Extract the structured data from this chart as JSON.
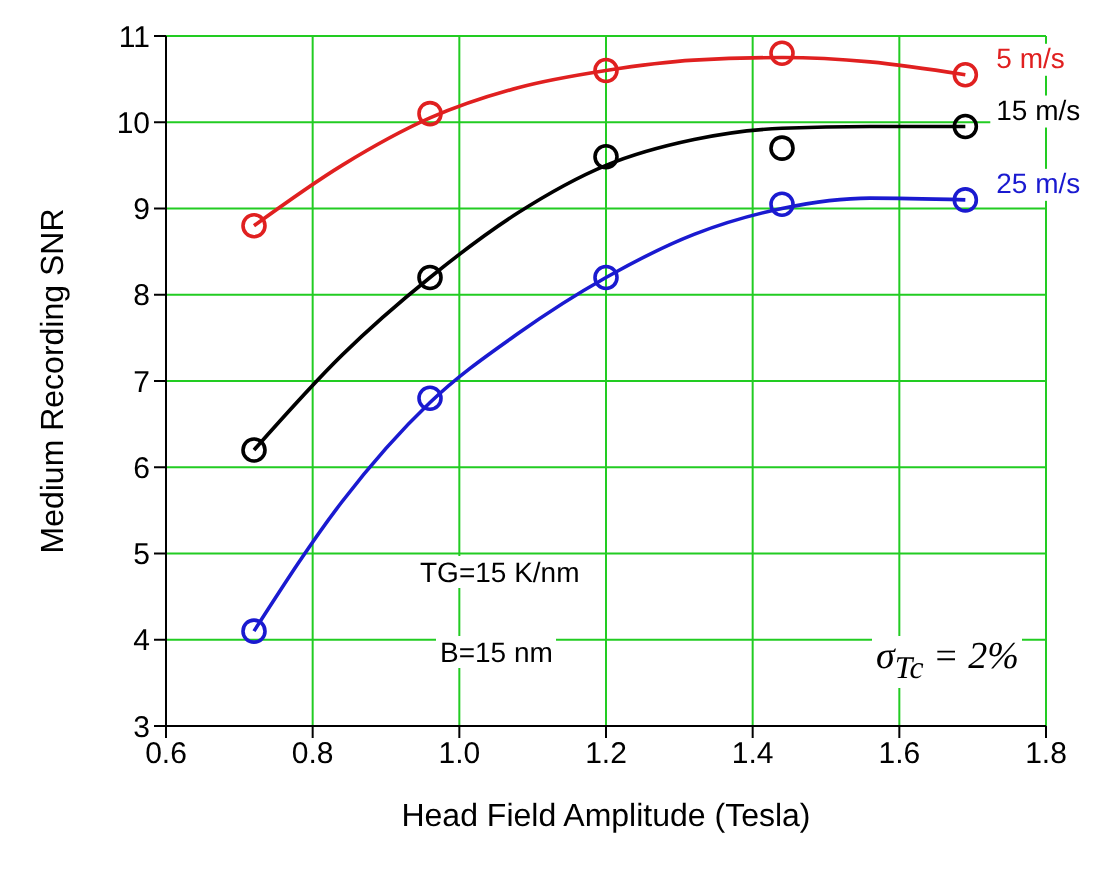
{
  "chart_data": {
    "type": "scatter",
    "xlabel": "Head Field Amplitude (Tesla)",
    "ylabel": "Medium Recording SNR",
    "xlim": [
      0.6,
      1.8
    ],
    "xticks": [
      0.6,
      0.8,
      {
        "value": 1,
        "label": "1.0"
      },
      1.2,
      1.4,
      1.6,
      1.8
    ],
    "ylim": [
      3,
      11
    ],
    "yticks": [
      3,
      4,
      5,
      6,
      7,
      8,
      9,
      10,
      11
    ],
    "grid": true,
    "legend": false,
    "marker": "circle",
    "series": [
      {
        "name": "5 m/s",
        "color": "#e02020",
        "x": [
          0.72,
          0.96,
          1.2,
          1.44,
          1.69
        ],
        "values": [
          8.8,
          10.1,
          10.6,
          10.8,
          10.55
        ]
      },
      {
        "name": "15 m/s",
        "color": "#000000",
        "x": [
          0.72,
          0.96,
          1.2,
          1.44,
          1.69
        ],
        "values": [
          6.2,
          8.2,
          9.6,
          9.7,
          9.95
        ]
      },
      {
        "name": "25 m/s",
        "color": "#1a1ad0",
        "x": [
          0.72,
          0.96,
          1.2,
          1.44,
          1.69
        ],
        "values": [
          4.1,
          6.8,
          8.2,
          9.05,
          9.1
        ]
      },
      {
        "type": "line",
        "color": "#e02020",
        "marker": "none",
        "x": [
          0.72,
          0.84,
          0.96,
          1.08,
          1.2,
          1.32,
          1.44,
          1.56,
          1.69
        ],
        "values": [
          8.8,
          9.5,
          10.05,
          10.4,
          10.6,
          10.72,
          10.75,
          10.7,
          10.55
        ]
      },
      {
        "type": "line",
        "color": "#000000",
        "marker": "none",
        "x": [
          0.72,
          0.84,
          0.96,
          1.08,
          1.2,
          1.32,
          1.44,
          1.56,
          1.69
        ],
        "values": [
          6.2,
          7.3,
          8.2,
          8.95,
          9.5,
          9.8,
          9.93,
          9.95,
          9.95
        ]
      },
      {
        "type": "line",
        "color": "#1a1ad0",
        "marker": "none",
        "x": [
          0.72,
          0.84,
          0.96,
          1.08,
          1.2,
          1.32,
          1.44,
          1.56,
          1.69
        ],
        "values": [
          4.1,
          5.6,
          6.75,
          7.55,
          8.2,
          8.7,
          9.0,
          9.12,
          9.1
        ]
      }
    ],
    "annotations": [
      "TG=15 K/nm",
      "B=15 nm",
      "σ$_{Tc}$ = 2%"
    ]
  }
}
